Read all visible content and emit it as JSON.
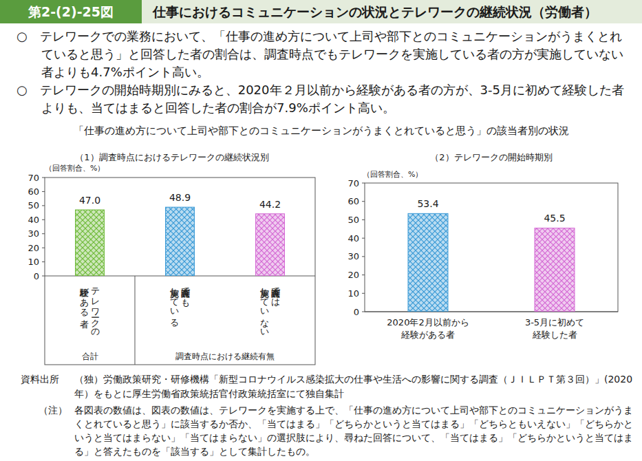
{
  "figure_number": "第2-(2)-25図",
  "figure_title": "仕事におけるコミュニケーションの状況とテレワークの継続状況（労働者）",
  "bullets": [
    "○　テレワークでの業務において、「仕事の進め方について上司や部下とのコミュニケーションがうまくとれていると思う」と回答した者の割合は、調査時点でもテレワークを実施している者の方が実施していない者よりも4.7%ポイント高い。",
    "○　テレワークの開始時期別にみると、2020年２月以前から経験がある者の方が、3-5月に初めて経験した者よりも、当てはまると回答した者の割合が7.9%ポイント高い。"
  ],
  "charts_title": "「仕事の進め方について上司や部下とのコミュニケーションがうまくとれていると思う」の該当者別の状況",
  "source_label": "資料出所",
  "source": "（独）労働政策研究・研修機構「新型コロナウイルス感染拡大の仕事や生活への影響に関する調査（ＪＩＬＰＴ第３回）」(2020年）をもとに厚生労働省政策統括官付政策統括室にて独自集計",
  "note_label": "（注）",
  "note": "各図表の数値は、図表の数値は、テレワークを実施する上で、「仕事の進め方について上司や部下とのコミュニケーションがうまくとれていると思う」に該当するか否か、「当てはまる」「どちらかというと当てはまる」「どちらともいえない」「どちらかというと当てはまらない」「当てはまらない」の選択肢により、尋ねた回答について、「当てはまる」「どちらかというと当てはまる」と答えたものを「該当する」として集計したもの。",
  "chart_data": [
    {
      "type": "bar",
      "title": "（1）調査時点におけるテレワークの継続状況別",
      "ylabel": "（回答割合、%）",
      "categories": [
        "テレワークの\n経験がある者",
        "調査時点でも\n実施している",
        "調査時点では\n実施していない"
      ],
      "category_groups": [
        "合計",
        "調査時点における継続有無"
      ],
      "values": [
        47.0,
        48.9,
        44.2
      ],
      "value_labels": [
        "47.0",
        "48.9",
        "44.2"
      ],
      "colors": [
        "#6fba3a",
        "#3a9ad6",
        "#d46ad4"
      ],
      "ylim": [
        0,
        70
      ],
      "yticks": [
        0,
        10,
        20,
        30,
        40,
        50,
        60,
        70
      ],
      "grid": false,
      "data_labels": true
    },
    {
      "type": "bar",
      "title": "（2）テレワークの開始時期別",
      "ylabel": "（回答割合、%）",
      "categories": [
        "2020年2月以前から\n経験がある者",
        "3-5月に初めて\n経験した者"
      ],
      "values": [
        53.4,
        45.5
      ],
      "value_labels": [
        "53.4",
        "45.5"
      ],
      "colors": [
        "#3a9ad6",
        "#d46ad4"
      ],
      "ylim": [
        0,
        70
      ],
      "yticks": [
        0,
        10,
        20,
        30,
        40,
        50,
        60,
        70
      ],
      "grid": false,
      "data_labels": true
    }
  ]
}
